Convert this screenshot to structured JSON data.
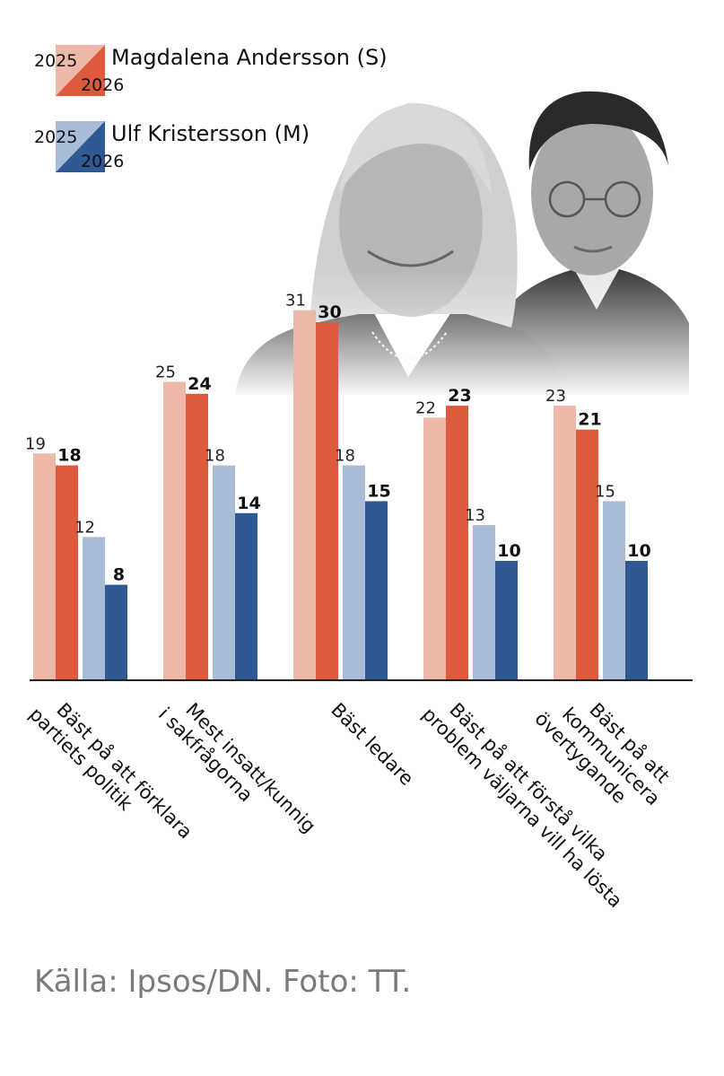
{
  "legend": [
    {
      "name": "Magdalena Andersson (S)",
      "year_prev": "2025",
      "year_cur": "2026",
      "color_prev": "#EDB8A8",
      "color_cur": "#DE5A3C"
    },
    {
      "name": "Ulf Kristersson (M)",
      "year_prev": "2025",
      "year_cur": "2026",
      "color_prev": "#A8BCD8",
      "color_cur": "#2E5994"
    }
  ],
  "source": "Källa: Ipsos/DN. Foto: TT.",
  "chart_data": {
    "type": "bar",
    "categories": [
      [
        "Bäst på att förklara",
        "partiets politik"
      ],
      [
        "Mest insatt/kunnig",
        "i sakfrågorna"
      ],
      [
        "Bäst ledare"
      ],
      [
        "Bäst på att förstå vilka",
        "problem väljarna vill ha lösta"
      ],
      [
        "Bäst på att",
        "kommunicera",
        "övertygande"
      ]
    ],
    "series": [
      {
        "name": "Magdalena Andersson (S) 2025",
        "color": "#EDB8A8",
        "values": [
          19,
          25,
          31,
          22,
          23
        ]
      },
      {
        "name": "Magdalena Andersson (S) 2026",
        "color": "#DE5A3C",
        "values": [
          18,
          24,
          30,
          23,
          21
        ]
      },
      {
        "name": "Ulf Kristersson (M) 2025",
        "color": "#A8BCD8",
        "values": [
          12,
          18,
          18,
          13,
          15
        ]
      },
      {
        "name": "Ulf Kristersson (M) 2026",
        "color": "#2E5994",
        "values": [
          8,
          14,
          15,
          10,
          10
        ]
      }
    ],
    "ylim": [
      0,
      35
    ],
    "grid": false,
    "legend_position": "top-left"
  }
}
